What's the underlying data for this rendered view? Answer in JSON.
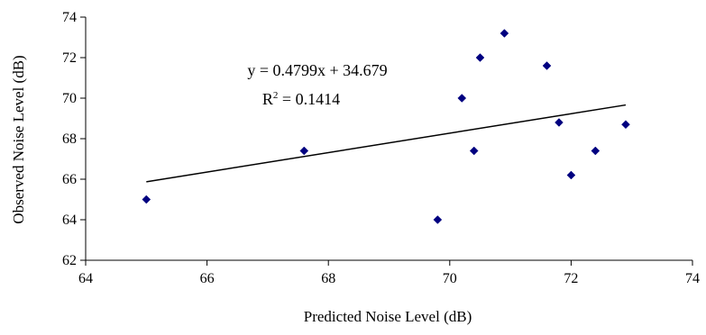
{
  "chart_data": {
    "type": "scatter",
    "title": "",
    "xlabel": "Predicted Noise Level (dB)",
    "ylabel": "Observed Noise Level (dB)",
    "xlim": [
      64,
      74
    ],
    "ylim": [
      62,
      74
    ],
    "xticks": [
      64,
      66,
      68,
      70,
      72,
      74
    ],
    "yticks": [
      62,
      64,
      66,
      68,
      70,
      72,
      74
    ],
    "grid": false,
    "legend": "none",
    "marker_color": "#000080",
    "series": [
      {
        "marker": "diamond",
        "points": [
          {
            "x": 65.0,
            "y": 65.0
          },
          {
            "x": 67.6,
            "y": 67.4
          },
          {
            "x": 69.8,
            "y": 64.0
          },
          {
            "x": 70.2,
            "y": 70.0
          },
          {
            "x": 70.4,
            "y": 67.4
          },
          {
            "x": 70.5,
            "y": 72.0
          },
          {
            "x": 70.9,
            "y": 73.2
          },
          {
            "x": 71.6,
            "y": 71.6
          },
          {
            "x": 71.8,
            "y": 68.8
          },
          {
            "x": 72.0,
            "y": 66.2
          },
          {
            "x": 72.4,
            "y": 67.4
          },
          {
            "x": 72.9,
            "y": 68.7
          }
        ]
      }
    ],
    "trendline": {
      "type": "linear",
      "slope": 0.4799,
      "intercept": 34.679,
      "x_range": [
        65.0,
        72.9
      ],
      "color": "#000000",
      "equation_text": "y = 0.4799x + 34.679",
      "r2_prefix": "R",
      "r2_sup": "2",
      "r2_value": " = 0.1414"
    }
  }
}
